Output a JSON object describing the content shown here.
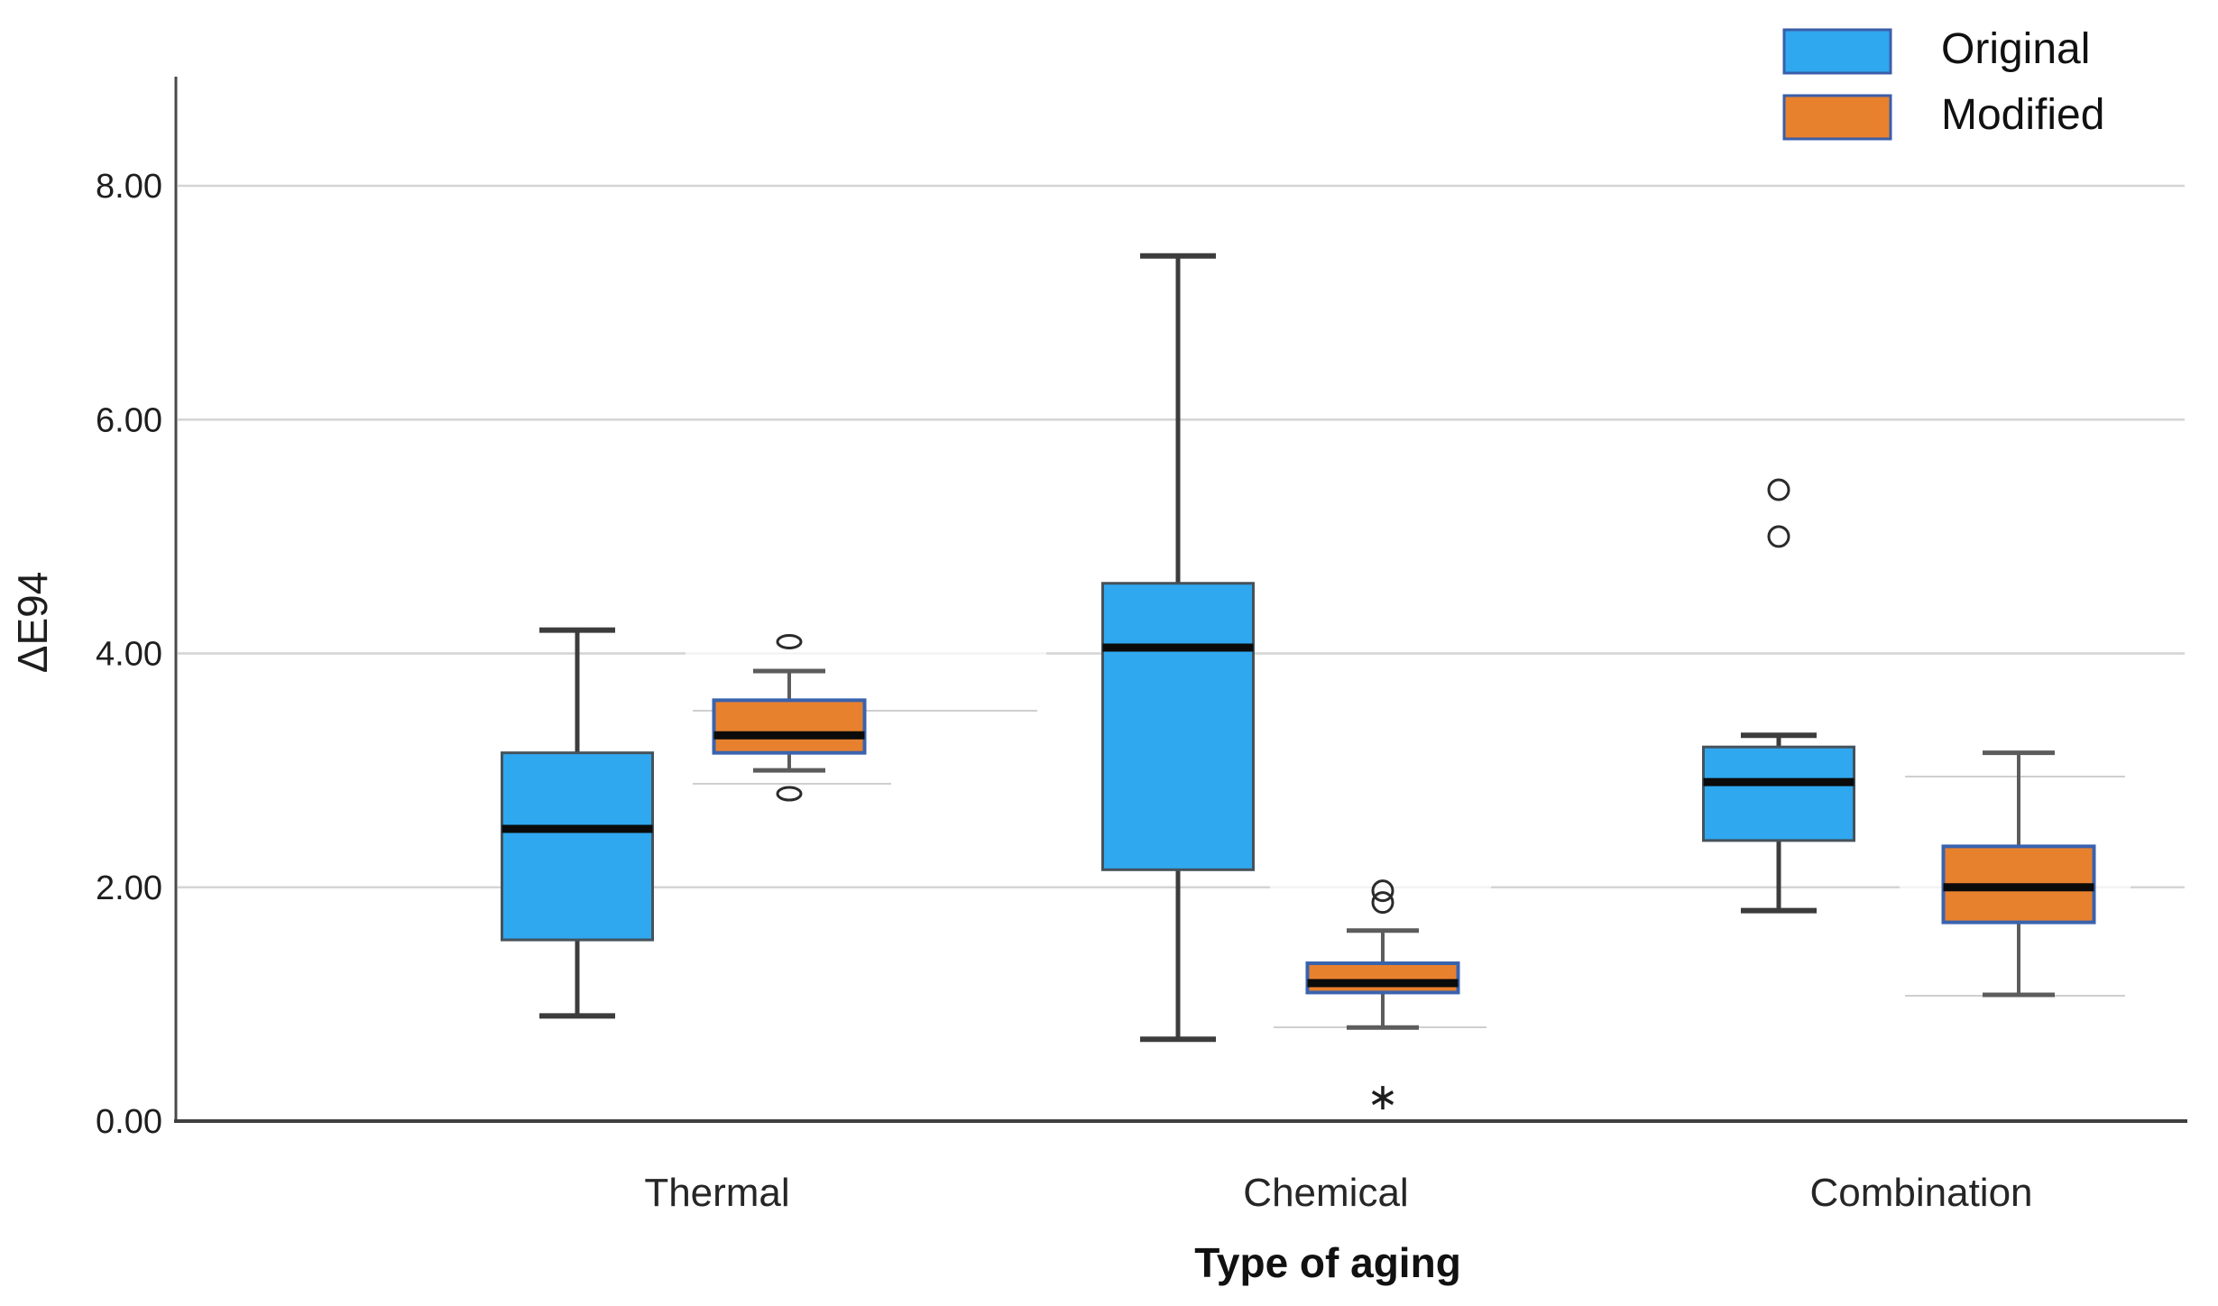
{
  "chart_data": {
    "type": "boxplot",
    "title": "",
    "xlabel": "Type of aging",
    "ylabel": "ΔE94",
    "ylim": [
      0,
      8.9
    ],
    "grid": "horizontal-gridlines-on",
    "legend_position": "top-right",
    "yticks": [
      {
        "value": 8,
        "label": "8.00"
      },
      {
        "value": 6,
        "label": "6.00"
      },
      {
        "value": 4,
        "label": "4.00"
      },
      {
        "value": 2,
        "label": "2.00"
      },
      {
        "value": 0,
        "label": "0.00"
      }
    ],
    "categories": [
      "Thermal",
      "Chemical",
      "Combination"
    ],
    "legend": [
      {
        "label": "Original",
        "color": "#2FA8F0"
      },
      {
        "label": "Modified",
        "color": "#E8812E"
      }
    ],
    "series": [
      {
        "name": "Original",
        "fill": "#2FA8F0",
        "boxes": [
          {
            "category": "Thermal",
            "whisker_low": 0.9,
            "q1": 1.55,
            "median": 2.5,
            "q3": 3.15,
            "whisker_high": 4.2,
            "outliers": [],
            "extremes": []
          },
          {
            "category": "Chemical",
            "whisker_low": 0.7,
            "q1": 2.15,
            "median": 4.05,
            "q3": 4.6,
            "whisker_high": 7.4,
            "outliers": [],
            "extremes": []
          },
          {
            "category": "Combination",
            "whisker_low": 1.8,
            "q1": 2.4,
            "median": 2.9,
            "q3": 3.2,
            "whisker_high": 3.3,
            "outliers": [
              5.0,
              5.4
            ],
            "extremes": []
          }
        ]
      },
      {
        "name": "Modified",
        "fill": "#E8812E",
        "boxes": [
          {
            "category": "Thermal",
            "whisker_low": 3.0,
            "q1": 3.15,
            "median": 3.3,
            "q3": 3.6,
            "whisker_high": 3.85,
            "outliers": [
              4.1,
              2.8
            ],
            "extremes": []
          },
          {
            "category": "Chemical",
            "whisker_low": 0.8,
            "q1": 1.1,
            "median": 1.18,
            "q3": 1.35,
            "whisker_high": 1.63,
            "outliers": [
              1.97,
              1.87
            ],
            "extremes": [
              0.2
            ]
          },
          {
            "category": "Combination",
            "whisker_low": 1.08,
            "q1": 1.7,
            "median": 2.0,
            "q3": 2.35,
            "whisker_high": 3.15,
            "outliers": [],
            "extremes": []
          }
        ]
      }
    ]
  },
  "colors": {
    "original_fill": "#2FA8F0",
    "original_border": "#46525A",
    "modified_fill": "#E8812E",
    "modified_border": "#3A63AE",
    "median": "#0B0B0B",
    "gridline": "#D4D4D4",
    "axis": "#3F3F3F",
    "whisker_original": "#3C3C3C",
    "whisker_modified": "#5C5C5C",
    "outlier_stroke": "#2B2B2B",
    "text": "#1E1E1E",
    "legend_swatch_border": "#3B5EA9"
  }
}
